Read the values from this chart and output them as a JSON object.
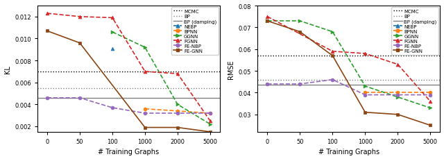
{
  "x_positions": [
    0,
    1,
    2,
    3,
    4,
    5
  ],
  "x_labels": [
    "0",
    "50",
    "100",
    "1000",
    "2000",
    "5000"
  ],
  "kl": {
    "MCMC": 0.007,
    "BP": 0.0055,
    "BP_damping": 0.0046,
    "NEBP": [
      null,
      null,
      0.0091,
      null,
      null,
      null
    ],
    "BPNN": [
      null,
      null,
      null,
      0.0036,
      0.0034,
      0.0032
    ],
    "GGNN": [
      null,
      null,
      0.0106,
      0.0092,
      0.004,
      0.0022
    ],
    "FGNN": [
      0.0123,
      0.012,
      0.0119,
      0.007,
      0.0068,
      0.0025
    ],
    "FE_NBP": [
      0.0046,
      0.0046,
      0.0037,
      0.0032,
      0.0032,
      0.0032
    ],
    "FE_GNN": [
      0.0107,
      0.0096,
      null,
      0.0019,
      0.0019,
      0.0015
    ]
  },
  "rmse": {
    "MCMC": 0.057,
    "BP": 0.046,
    "BP_damping": 0.0435,
    "NEBP": [
      null,
      null,
      null,
      null,
      null,
      null
    ],
    "BPNN": [
      null,
      null,
      null,
      0.04,
      0.04,
      0.04
    ],
    "GGNN": [
      0.073,
      0.073,
      0.068,
      0.043,
      0.038,
      0.033
    ],
    "FGNN": [
      0.075,
      null,
      0.059,
      0.058,
      0.053,
      0.036
    ],
    "FE_NBP": [
      0.044,
      0.044,
      0.046,
      0.039,
      0.039,
      0.039
    ],
    "FE_GNN": [
      0.073,
      0.068,
      0.057,
      0.031,
      0.03,
      0.025
    ]
  },
  "colors": {
    "NEBP": "#1f77b4",
    "BPNN": "#ff7f0e",
    "GGNN": "#2ca02c",
    "FGNN": "#d62728",
    "FE_NBP": "#9467bd",
    "FE_GNN": "#8b4513"
  },
  "markers": {
    "NEBP": "^",
    "BPNN": "o",
    "GGNN": ">",
    "FGNN": "^",
    "FE_NBP": "o",
    "FE_GNN": "s"
  },
  "linestyles": {
    "NEBP": "--",
    "BPNN": "--",
    "GGNN": "--",
    "FGNN": "--",
    "FE_NBP": "--",
    "FE_GNN": "-"
  },
  "labels": {
    "NEBP": "NEBP",
    "BPNN": "BPNN",
    "GGNN": "GGNN",
    "FGNN": "FGNN",
    "FE_NBP": "FE-NBP",
    "FE_GNN": "FE-GNN"
  },
  "kl_ylim": [
    0.0015,
    0.013
  ],
  "rmse_ylim": [
    0.022,
    0.08
  ]
}
